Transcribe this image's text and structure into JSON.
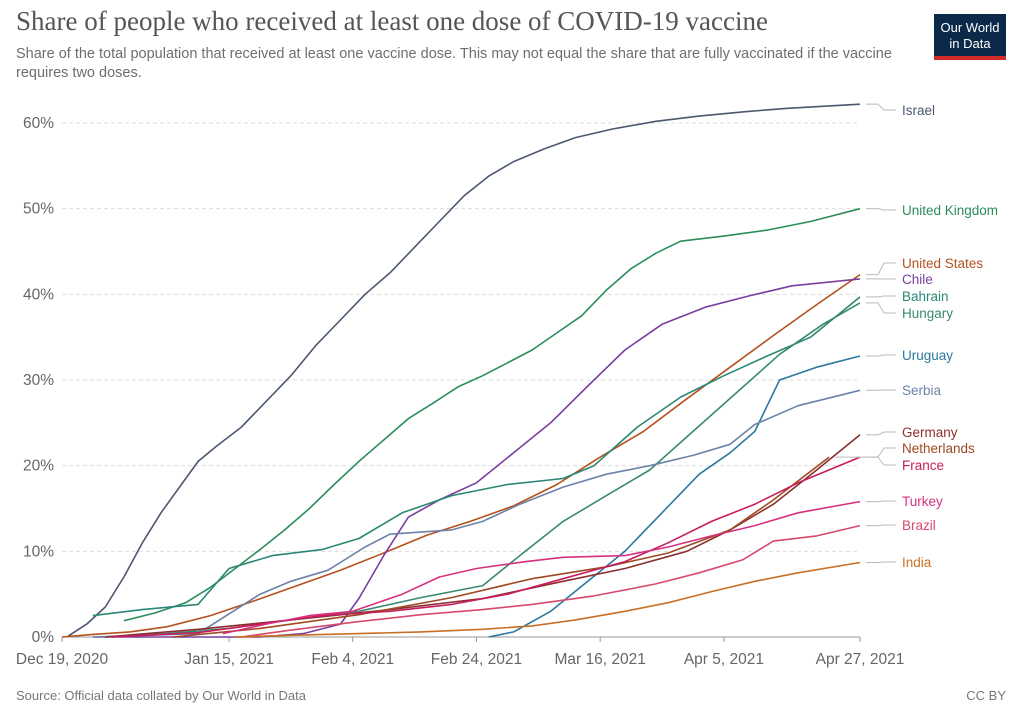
{
  "header": {
    "title": "Share of people who received at least one dose of COVID-19 vaccine",
    "subtitle": "Share of the total population that received at least one vaccine dose. This may not equal the share that are fully vaccinated if the vaccine requires two doses.",
    "logo_line1": "Our World",
    "logo_line2": "in Data"
  },
  "footer": {
    "source": "Source: Official data collated by Our World in Data",
    "license": "CC BY"
  },
  "chart_data": {
    "type": "line",
    "title": "Share of people who received at least one dose of COVID-19 vaccine",
    "subtitle": "Share of the total population that received at least one vaccine dose. This may not equal the share that are fully vaccinated if the vaccine requires two doses.",
    "xlim": [
      "2020-12-19",
      "2021-04-27"
    ],
    "ylim": [
      0,
      62
    ],
    "x_ticks": [
      "Dec 19, 2020",
      "Jan 15, 2021",
      "Feb 4, 2021",
      "Feb 24, 2021",
      "Mar 16, 2021",
      "Apr 5, 2021",
      "Apr 27, 2021"
    ],
    "y_ticks": [
      "0%",
      "10%",
      "20%",
      "30%",
      "40%",
      "50%",
      "60%"
    ],
    "grid": "horizontal dashed",
    "legend": "right, line-end labels",
    "series": [
      {
        "name": "Israel",
        "color": "#4c5870",
        "points": [
          [
            "2020-12-20",
            0.1
          ],
          [
            "2020-12-23",
            1.5
          ],
          [
            "2020-12-26",
            3.5
          ],
          [
            "2020-12-29",
            7
          ],
          [
            "2021-01-01",
            11
          ],
          [
            "2021-01-04",
            14.5
          ],
          [
            "2021-01-07",
            17.5
          ],
          [
            "2021-01-10",
            20.5
          ],
          [
            "2021-01-13",
            22.3
          ],
          [
            "2021-01-17",
            24.5
          ],
          [
            "2021-01-21",
            27.5
          ],
          [
            "2021-01-25",
            30.5
          ],
          [
            "2021-01-29",
            34
          ],
          [
            "2021-02-02",
            37
          ],
          [
            "2021-02-06",
            40
          ],
          [
            "2021-02-10",
            42.5
          ],
          [
            "2021-02-14",
            45.5
          ],
          [
            "2021-02-18",
            48.5
          ],
          [
            "2021-02-22",
            51.5
          ],
          [
            "2021-02-26",
            53.8
          ],
          [
            "2021-03-02",
            55.5
          ],
          [
            "2021-03-07",
            57
          ],
          [
            "2021-03-12",
            58.3
          ],
          [
            "2021-03-18",
            59.3
          ],
          [
            "2021-03-25",
            60.2
          ],
          [
            "2021-04-01",
            60.8
          ],
          [
            "2021-04-08",
            61.3
          ],
          [
            "2021-04-15",
            61.7
          ],
          [
            "2021-04-22",
            62
          ],
          [
            "2021-04-27",
            62.2
          ]
        ]
      },
      {
        "name": "United Kingdom",
        "color": "#2a8e5b",
        "points": [
          [
            "2020-12-29",
            1.9
          ],
          [
            "2021-01-03",
            2.8
          ],
          [
            "2021-01-08",
            4
          ],
          [
            "2021-01-12",
            5.8
          ],
          [
            "2021-01-16",
            8
          ],
          [
            "2021-01-20",
            10.2
          ],
          [
            "2021-01-24",
            12.5
          ],
          [
            "2021-01-28",
            15
          ],
          [
            "2021-02-01",
            17.8
          ],
          [
            "2021-02-05",
            20.5
          ],
          [
            "2021-02-09",
            23
          ],
          [
            "2021-02-13",
            25.5
          ],
          [
            "2021-02-17",
            27.3
          ],
          [
            "2021-02-21",
            29.2
          ],
          [
            "2021-02-25",
            30.5
          ],
          [
            "2021-03-01",
            32
          ],
          [
            "2021-03-05",
            33.5
          ],
          [
            "2021-03-09",
            35.5
          ],
          [
            "2021-03-13",
            37.5
          ],
          [
            "2021-03-17",
            40.5
          ],
          [
            "2021-03-21",
            43
          ],
          [
            "2021-03-25",
            44.8
          ],
          [
            "2021-03-29",
            46.2
          ],
          [
            "2021-04-05",
            46.8
          ],
          [
            "2021-04-12",
            47.5
          ],
          [
            "2021-04-19",
            48.5
          ],
          [
            "2021-04-27",
            50
          ]
        ]
      },
      {
        "name": "United States",
        "color": "#b5511d",
        "points": [
          [
            "2020-12-19",
            0
          ],
          [
            "2020-12-24",
            0.3
          ],
          [
            "2020-12-30",
            0.6
          ],
          [
            "2021-01-05",
            1.2
          ],
          [
            "2021-01-12",
            2.5
          ],
          [
            "2021-01-19",
            4.2
          ],
          [
            "2021-01-26",
            6
          ],
          [
            "2021-02-02",
            7.8
          ],
          [
            "2021-02-09",
            9.8
          ],
          [
            "2021-02-16",
            11.9
          ],
          [
            "2021-02-23",
            13.5
          ],
          [
            "2021-03-02",
            15.3
          ],
          [
            "2021-03-09",
            17.8
          ],
          [
            "2021-03-16",
            21
          ],
          [
            "2021-03-23",
            24
          ],
          [
            "2021-03-30",
            27.8
          ],
          [
            "2021-04-06",
            31.5
          ],
          [
            "2021-04-13",
            35.2
          ],
          [
            "2021-04-20",
            38.8
          ],
          [
            "2021-04-27",
            42.3
          ]
        ]
      },
      {
        "name": "Chile",
        "color": "#7a3f9e",
        "points": [
          [
            "2020-12-24",
            0
          ],
          [
            "2021-01-20",
            0
          ],
          [
            "2021-01-27",
            0.4
          ],
          [
            "2021-02-02",
            1.5
          ],
          [
            "2021-02-05",
            4.5
          ],
          [
            "2021-02-09",
            9.5
          ],
          [
            "2021-02-13",
            14
          ],
          [
            "2021-02-18",
            16
          ],
          [
            "2021-02-24",
            18
          ],
          [
            "2021-03-02",
            21.5
          ],
          [
            "2021-03-08",
            25
          ],
          [
            "2021-03-14",
            29.3
          ],
          [
            "2021-03-20",
            33.5
          ],
          [
            "2021-03-26",
            36.5
          ],
          [
            "2021-04-02",
            38.5
          ],
          [
            "2021-04-09",
            39.8
          ],
          [
            "2021-04-16",
            41
          ],
          [
            "2021-04-27",
            41.8
          ]
        ]
      },
      {
        "name": "Bahrain",
        "color": "#2b8775",
        "points": [
          [
            "2020-12-24",
            2.5
          ],
          [
            "2021-01-01",
            3.2
          ],
          [
            "2021-01-10",
            3.8
          ],
          [
            "2021-01-15",
            8
          ],
          [
            "2021-01-22",
            9.5
          ],
          [
            "2021-01-30",
            10.2
          ],
          [
            "2021-02-05",
            11.5
          ],
          [
            "2021-02-12",
            14.5
          ],
          [
            "2021-02-20",
            16.5
          ],
          [
            "2021-03-01",
            17.8
          ],
          [
            "2021-03-10",
            18.5
          ],
          [
            "2021-03-15",
            20
          ],
          [
            "2021-03-22",
            24.5
          ],
          [
            "2021-03-29",
            28
          ],
          [
            "2021-04-05",
            30.5
          ],
          [
            "2021-04-12",
            32.8
          ],
          [
            "2021-04-19",
            35
          ],
          [
            "2021-04-27",
            39.7
          ]
        ]
      },
      {
        "name": "Hungary",
        "color": "#3a8a6f",
        "points": [
          [
            "2020-12-26",
            0
          ],
          [
            "2021-01-05",
            0.4
          ],
          [
            "2021-01-15",
            1
          ],
          [
            "2021-01-25",
            2
          ],
          [
            "2021-02-05",
            3
          ],
          [
            "2021-02-15",
            4.6
          ],
          [
            "2021-02-25",
            6
          ],
          [
            "2021-03-03",
            9.5
          ],
          [
            "2021-03-10",
            13.5
          ],
          [
            "2021-03-17",
            16.5
          ],
          [
            "2021-03-24",
            19.5
          ],
          [
            "2021-03-31",
            24
          ],
          [
            "2021-04-07",
            28.5
          ],
          [
            "2021-04-14",
            33
          ],
          [
            "2021-04-21",
            36.5
          ],
          [
            "2021-04-27",
            39
          ]
        ]
      },
      {
        "name": "Uruguay",
        "color": "#2c78a0",
        "points": [
          [
            "2021-02-26",
            0
          ],
          [
            "2021-03-02",
            0.6
          ],
          [
            "2021-03-08",
            3
          ],
          [
            "2021-03-14",
            6.5
          ],
          [
            "2021-03-20",
            10
          ],
          [
            "2021-03-26",
            14.5
          ],
          [
            "2021-04-01",
            19
          ],
          [
            "2021-04-06",
            21.5
          ],
          [
            "2021-04-10",
            24
          ],
          [
            "2021-04-14",
            30
          ],
          [
            "2021-04-20",
            31.5
          ],
          [
            "2021-04-27",
            32.8
          ]
        ]
      },
      {
        "name": "Serbia",
        "color": "#6c82a8",
        "points": [
          [
            "2020-12-24",
            0
          ],
          [
            "2021-01-10",
            0.4
          ],
          [
            "2021-01-20",
            5
          ],
          [
            "2021-01-25",
            6.5
          ],
          [
            "2021-01-31",
            7.8
          ],
          [
            "2021-02-06",
            10.5
          ],
          [
            "2021-02-10",
            12
          ],
          [
            "2021-02-20",
            12.5
          ],
          [
            "2021-02-25",
            13.5
          ],
          [
            "2021-03-03",
            15.5
          ],
          [
            "2021-03-10",
            17.5
          ],
          [
            "2021-03-17",
            19
          ],
          [
            "2021-03-24",
            20
          ],
          [
            "2021-03-31",
            21.2
          ],
          [
            "2021-04-06",
            22.5
          ],
          [
            "2021-04-10",
            24.8
          ],
          [
            "2021-04-17",
            27
          ],
          [
            "2021-04-27",
            28.8
          ]
        ]
      },
      {
        "name": "Germany",
        "color": "#8b2e2e",
        "points": [
          [
            "2020-12-26",
            0
          ],
          [
            "2021-01-10",
            0.9
          ],
          [
            "2021-01-25",
            2
          ],
          [
            "2021-02-10",
            3.2
          ],
          [
            "2021-02-25",
            4.5
          ],
          [
            "2021-03-10",
            6.5
          ],
          [
            "2021-03-20",
            8
          ],
          [
            "2021-03-30",
            10
          ],
          [
            "2021-04-06",
            12.5
          ],
          [
            "2021-04-13",
            15.5
          ],
          [
            "2021-04-20",
            19.5
          ],
          [
            "2021-04-27",
            23.6
          ]
        ]
      },
      {
        "name": "Netherlands",
        "color": "#9e4a22",
        "points": [
          [
            "2021-01-06",
            0
          ],
          [
            "2021-01-20",
            1
          ],
          [
            "2021-02-05",
            2.6
          ],
          [
            "2021-02-20",
            4.6
          ],
          [
            "2021-03-05",
            6.8
          ],
          [
            "2021-03-17",
            8.2
          ],
          [
            "2021-03-27",
            9.8
          ],
          [
            "2021-04-06",
            12.5
          ],
          [
            "2021-04-13",
            16
          ],
          [
            "2021-04-22",
            21
          ]
        ]
      },
      {
        "name": "France",
        "color": "#c71d5e",
        "points": [
          [
            "2020-12-27",
            0
          ],
          [
            "2021-01-10",
            0.5
          ],
          [
            "2021-01-20",
            1.5
          ],
          [
            "2021-01-30",
            2.5
          ],
          [
            "2021-02-10",
            3
          ],
          [
            "2021-02-20",
            3.8
          ],
          [
            "2021-03-01",
            5
          ],
          [
            "2021-03-10",
            6.8
          ],
          [
            "2021-03-20",
            8.8
          ],
          [
            "2021-03-27",
            11
          ],
          [
            "2021-04-03",
            13.5
          ],
          [
            "2021-04-10",
            15.5
          ],
          [
            "2021-04-17",
            18
          ],
          [
            "2021-04-27",
            21
          ]
        ]
      },
      {
        "name": "Turkey",
        "color": "#d7307f",
        "points": [
          [
            "2021-01-14",
            0.4
          ],
          [
            "2021-01-21",
            1.5
          ],
          [
            "2021-01-28",
            2.5
          ],
          [
            "2021-02-04",
            3
          ],
          [
            "2021-02-12",
            5
          ],
          [
            "2021-02-18",
            7
          ],
          [
            "2021-02-24",
            8
          ],
          [
            "2021-03-04",
            8.8
          ],
          [
            "2021-03-10",
            9.3
          ],
          [
            "2021-03-20",
            9.5
          ],
          [
            "2021-03-27",
            10.5
          ],
          [
            "2021-04-03",
            11.8
          ],
          [
            "2021-04-10",
            13
          ],
          [
            "2021-04-17",
            14.5
          ],
          [
            "2021-04-27",
            15.8
          ]
        ]
      },
      {
        "name": "Brazil",
        "color": "#d6496d",
        "points": [
          [
            "2021-01-17",
            0
          ],
          [
            "2021-01-25",
            0.8
          ],
          [
            "2021-02-05",
            1.8
          ],
          [
            "2021-02-15",
            2.6
          ],
          [
            "2021-02-25",
            3.2
          ],
          [
            "2021-03-05",
            3.8
          ],
          [
            "2021-03-15",
            4.8
          ],
          [
            "2021-03-25",
            6.2
          ],
          [
            "2021-04-01",
            7.5
          ],
          [
            "2021-04-08",
            9
          ],
          [
            "2021-04-13",
            11.2
          ],
          [
            "2021-04-20",
            11.8
          ],
          [
            "2021-04-27",
            13
          ]
        ]
      },
      {
        "name": "India",
        "color": "#c97024",
        "points": [
          [
            "2021-01-16",
            0
          ],
          [
            "2021-01-25",
            0.2
          ],
          [
            "2021-02-05",
            0.4
          ],
          [
            "2021-02-15",
            0.6
          ],
          [
            "2021-02-25",
            0.9
          ],
          [
            "2021-03-05",
            1.3
          ],
          [
            "2021-03-12",
            2
          ],
          [
            "2021-03-20",
            3
          ],
          [
            "2021-03-27",
            4
          ],
          [
            "2021-04-03",
            5.3
          ],
          [
            "2021-04-10",
            6.5
          ],
          [
            "2021-04-17",
            7.5
          ],
          [
            "2021-04-27",
            8.7
          ]
        ]
      }
    ]
  }
}
